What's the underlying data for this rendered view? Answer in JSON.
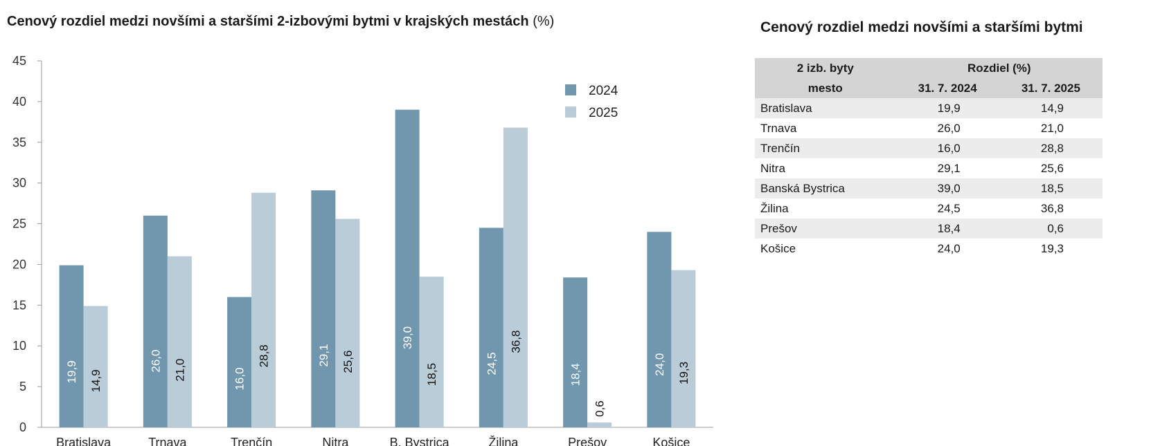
{
  "chart": {
    "title": "Cenový rozdiel medzi novšími a staršími 2-izbovými bytmi v krajských mestách",
    "title_unit": "(%)"
  },
  "chart_data": {
    "type": "bar",
    "categories": [
      "Bratislava",
      "Trnava",
      "Trenčín",
      "Nitra",
      "B. Bystrica",
      "Žilina",
      "Prešov",
      "Košice"
    ],
    "series": [
      {
        "name": "2024",
        "values": [
          19.9,
          26.0,
          16.0,
          29.1,
          39.0,
          24.5,
          18.4,
          24.0
        ],
        "labels": [
          "19,9",
          "26,0",
          "16,0",
          "29,1",
          "39,0",
          "24,5",
          "18,4",
          "24,0"
        ],
        "color": "#7097ad"
      },
      {
        "name": "2025",
        "values": [
          14.9,
          21.0,
          28.8,
          25.6,
          18.5,
          36.8,
          0.6,
          19.3
        ],
        "labels": [
          "14,9",
          "21,0",
          "28,8",
          "25,6",
          "18,5",
          "36,8",
          "0,6",
          "19,3"
        ],
        "color": "#b9ccd8"
      }
    ],
    "ylim": [
      0,
      45
    ],
    "yticks": [
      "0",
      "5",
      "10",
      "15",
      "20",
      "25",
      "30",
      "35",
      "40",
      "45"
    ],
    "legend_position": "top-right",
    "grid": false
  },
  "table": {
    "title": "Cenový rozdiel medzi novšími a staršími bytmi",
    "header_row1": {
      "col1": "2 izb. byty",
      "col2": "Rozdiel (%)"
    },
    "header_row2": {
      "col1": "mesto",
      "col2": "31. 7. 2024",
      "col3": "31. 7. 2025"
    },
    "rows": [
      {
        "city": "Bratislava",
        "v2024": "19,9",
        "v2025": "14,9"
      },
      {
        "city": "Trnava",
        "v2024": "26,0",
        "v2025": "21,0"
      },
      {
        "city": "Trenčín",
        "v2024": "16,0",
        "v2025": "28,8"
      },
      {
        "city": "Nitra",
        "v2024": "29,1",
        "v2025": "25,6"
      },
      {
        "city": "Banská Bystrica",
        "v2024": "39,0",
        "v2025": "18,5"
      },
      {
        "city": "Žilina",
        "v2024": "24,5",
        "v2025": "36,8"
      },
      {
        "city": "Prešov",
        "v2024": "18,4",
        "v2025": "0,6"
      },
      {
        "city": "Košice",
        "v2024": "24,0",
        "v2025": "19,3"
      }
    ]
  }
}
